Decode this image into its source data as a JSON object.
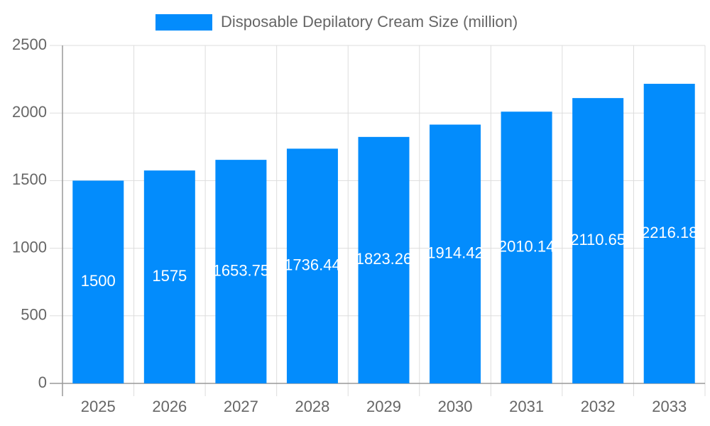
{
  "chart_data": {
    "type": "bar",
    "categories": [
      "2025",
      "2026",
      "2027",
      "2028",
      "2029",
      "2030",
      "2031",
      "2032",
      "2033"
    ],
    "series": [
      {
        "name": "Disposable Depilatory Cream Size (million)",
        "color": "#038cfc",
        "values": [
          1500,
          1575,
          1653.75,
          1736.44,
          1823.26,
          1914.42,
          2010.14,
          2110.65,
          2216.18
        ]
      }
    ],
    "ylim": [
      0,
      2500
    ],
    "yticks": [
      0,
      500,
      1000,
      1500,
      2000,
      2500
    ],
    "grid": true,
    "legend": "top"
  }
}
